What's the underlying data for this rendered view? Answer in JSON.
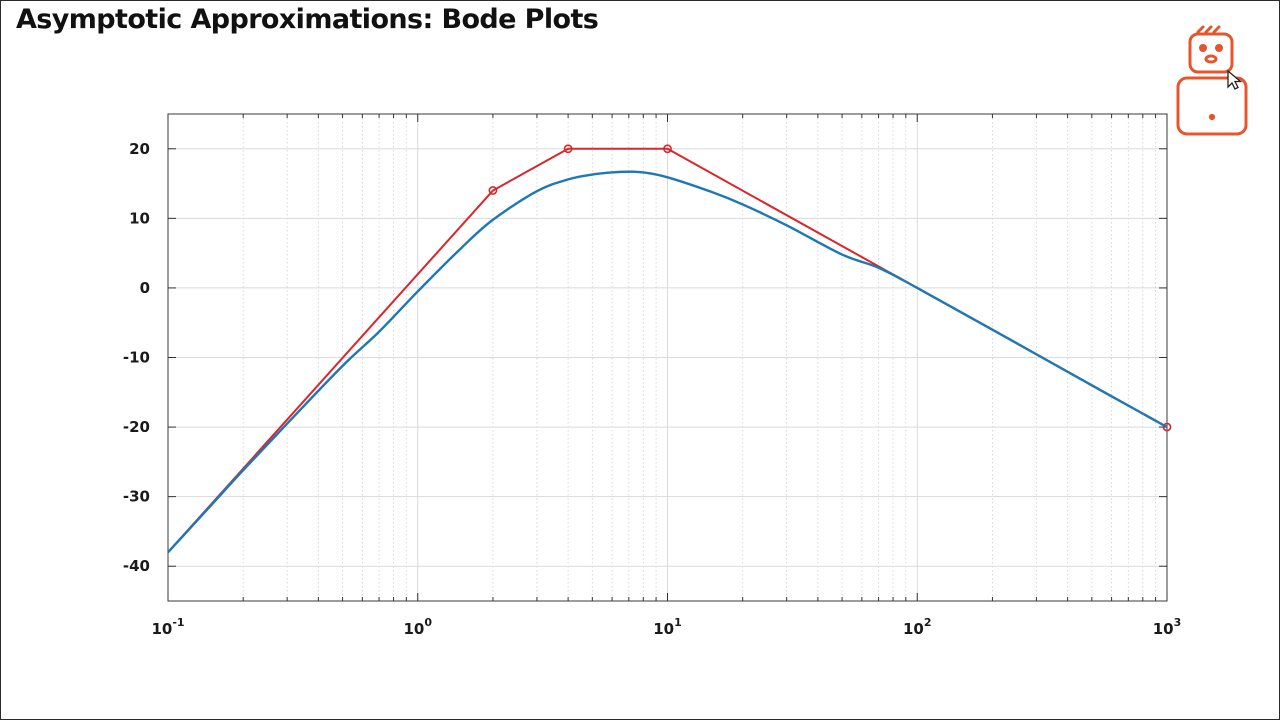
{
  "slide": {
    "title": "Asymptotic Approximations: Bode Plots"
  },
  "chart_data": {
    "type": "line",
    "title": "",
    "xlabel": "",
    "ylabel": "",
    "xscale": "log",
    "xlim": [
      0.1,
      1000
    ],
    "ylim": [
      -45,
      25
    ],
    "grid": true,
    "legend": "none",
    "yticks": [
      20,
      10,
      0,
      -10,
      -20,
      -30,
      -40
    ],
    "yticklabels": [
      "20",
      "10",
      "0",
      "-10",
      "-20",
      "-30",
      "-40"
    ],
    "xticks": [
      0.1,
      1,
      10,
      100,
      1000
    ],
    "xticklabels": [
      {
        "base": "10",
        "exp": "-1"
      },
      {
        "base": "10",
        "exp": "0"
      },
      {
        "base": "10",
        "exp": "1"
      },
      {
        "base": "10",
        "exp": "2"
      },
      {
        "base": "10",
        "exp": "3"
      }
    ],
    "series": [
      {
        "kind": "asymptote",
        "color": "#d9262c",
        "marker": "circle-open",
        "x": [
          0.1,
          2,
          4,
          10,
          1000
        ],
        "y": [
          -38,
          14,
          20,
          20,
          -20
        ],
        "marked": [
          false,
          true,
          true,
          true,
          true
        ]
      },
      {
        "kind": "exact",
        "color": "#1f77b4",
        "x": [
          0.1,
          0.15,
          0.2,
          0.3,
          0.5,
          0.7,
          1,
          1.5,
          2,
          3,
          4,
          5,
          6,
          7,
          8,
          10,
          15,
          20,
          30,
          50,
          70,
          100,
          200,
          500,
          1000
        ],
        "y": [
          -38,
          -31.1,
          -26.2,
          -19.5,
          -11.2,
          -6.3,
          -0.5,
          5.8,
          9.8,
          13.9,
          15.6,
          16.3,
          16.6,
          16.7,
          16.6,
          15.9,
          13.8,
          12.0,
          9.0,
          4.8,
          2.9,
          0,
          -6.0,
          -14.0,
          -20
        ]
      }
    ]
  },
  "logo": {
    "color": "#e8542c",
    "icon": "robot-mascot-icon"
  }
}
